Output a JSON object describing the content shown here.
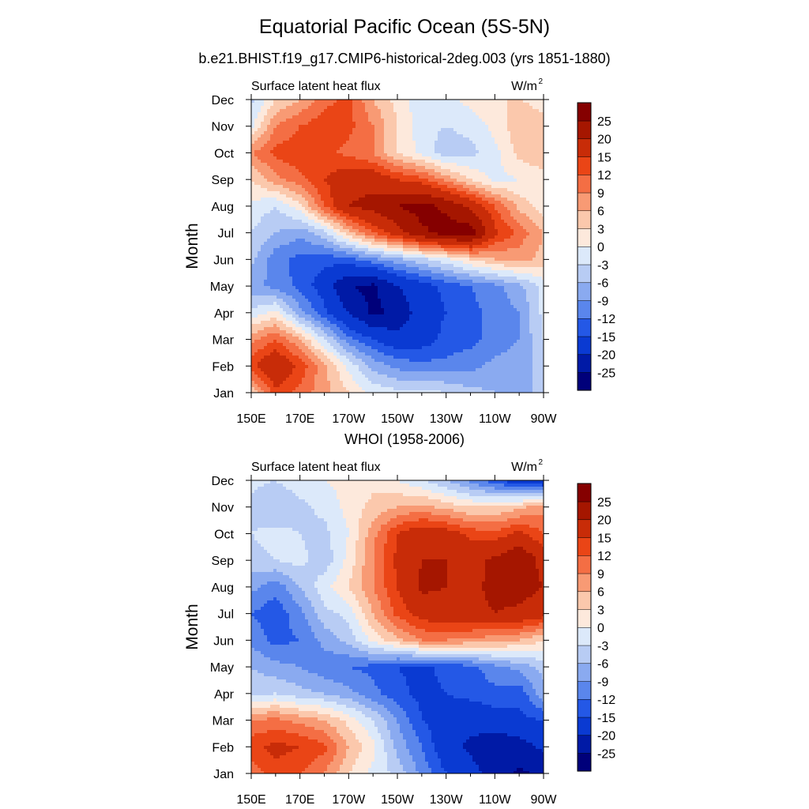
{
  "figure": {
    "title": "Equatorial Pacific Ocean (5S-5N)",
    "subtitle": "b.e21.BHIST.f19_g17.CMIP6-historical-2deg.003 (yrs 1851-1880)",
    "panel2_title": "WHOI (1958-2006)"
  },
  "colors": {
    "levels": [
      -25,
      -20,
      -15,
      -12,
      -9,
      -6,
      -3,
      0,
      3,
      6,
      9,
      12,
      15,
      20,
      25
    ],
    "fills": [
      "#00007a",
      "#001aa6",
      "#0a3ad2",
      "#2458e6",
      "#5a86ec",
      "#8aaaf0",
      "#b8ccf4",
      "#dce9fa",
      "#fde9dc",
      "#fbc8ac",
      "#f89a74",
      "#f46e44",
      "#ea4516",
      "#c82c08",
      "#a51600",
      "#850000"
    ]
  },
  "chart_data": [
    {
      "type": "heatmap",
      "name": "model",
      "left_label": "Surface latent heat flux",
      "right_label": "W/m",
      "right_label_sup": "2",
      "ylabel": "Month",
      "x_tick_labels": [
        "150E",
        "170E",
        "170W",
        "150W",
        "130W",
        "110W",
        "90W"
      ],
      "x": [
        150,
        160,
        170,
        180,
        190,
        200,
        210,
        220,
        230,
        240,
        250,
        260,
        270
      ],
      "y_tick_labels": [
        "Jan",
        "Feb",
        "Mar",
        "Apr",
        "May",
        "Jun",
        "Jul",
        "Aug",
        "Sep",
        "Oct",
        "Nov",
        "Dec"
      ],
      "colorbar_labels": [
        "25",
        "20",
        "15",
        "12",
        "9",
        "6",
        "3",
        "0",
        "-3",
        "-6",
        "-9",
        "-12",
        "-15",
        "-20",
        "-25"
      ],
      "z": [
        [
          3,
          14,
          11,
          7,
          3,
          -1,
          -2,
          -2,
          -3,
          -5,
          -6,
          -7,
          -5
        ],
        [
          14,
          20,
          14,
          7,
          -1,
          -7,
          -10,
          -11,
          -11,
          -10,
          -8,
          -7,
          -5
        ],
        [
          8,
          12,
          6,
          -3,
          -11,
          -15,
          -18,
          -17,
          -14,
          -13,
          -11,
          -9,
          -3
        ],
        [
          -2,
          1,
          -8,
          -14,
          -20,
          -26,
          -24,
          -17,
          -15,
          -13,
          -11,
          -9,
          -2
        ],
        [
          -8,
          -10,
          -13,
          -17,
          -25,
          -26,
          -20,
          -17,
          -14,
          -12,
          -10,
          -7,
          -2
        ],
        [
          -5,
          -11,
          -13,
          -14,
          -13,
          -10,
          -7,
          -4,
          -1,
          3,
          6,
          7,
          5
        ],
        [
          -3,
          -6,
          -8,
          -4,
          5,
          12,
          18,
          24,
          27,
          28,
          16,
          11,
          6
        ],
        [
          -1,
          -3,
          2,
          12,
          20,
          22,
          25,
          27,
          24,
          19,
          12,
          5,
          1
        ],
        [
          3,
          8,
          11,
          15,
          18,
          18,
          15,
          13,
          8,
          3,
          -1,
          0,
          1
        ],
        [
          9,
          13,
          14,
          13,
          11,
          9,
          3,
          -1,
          -5,
          -4,
          -1,
          4,
          6
        ],
        [
          -1,
          9,
          12,
          14,
          13,
          9,
          3,
          -2,
          -3,
          -2,
          1,
          5,
          4
        ],
        [
          -4,
          3,
          6,
          11,
          13,
          6,
          2,
          -2,
          -1,
          1,
          3,
          3,
          2
        ]
      ]
    },
    {
      "type": "heatmap",
      "name": "obs",
      "left_label": "Surface latent heat flux",
      "right_label": "W/m",
      "right_label_sup": "2",
      "ylabel": "Month",
      "x_tick_labels": [
        "150E",
        "170E",
        "170W",
        "150W",
        "130W",
        "110W",
        "90W"
      ],
      "x": [
        150,
        160,
        170,
        180,
        190,
        200,
        210,
        220,
        230,
        240,
        250,
        260,
        270
      ],
      "y_tick_labels": [
        "Jan",
        "Feb",
        "Mar",
        "Apr",
        "May",
        "Jun",
        "Jul",
        "Aug",
        "Sep",
        "Oct",
        "Nov",
        "Dec"
      ],
      "colorbar_labels": [
        "25",
        "20",
        "15",
        "12",
        "9",
        "6",
        "3",
        "0",
        "-3",
        "-6",
        "-9",
        "-12",
        "-15",
        "-20",
        "-25"
      ],
      "z": [
        [
          10,
          14,
          12,
          9,
          3,
          -1,
          -4,
          -10,
          -15,
          -18,
          -22,
          -26,
          -24
        ],
        [
          14,
          16,
          15,
          13,
          6,
          1,
          -7,
          -12,
          -18,
          -21,
          -24,
          -22,
          -19
        ],
        [
          9,
          10,
          8,
          6,
          2,
          -3,
          -9,
          -15,
          -17,
          -18,
          -17,
          -16,
          -15
        ],
        [
          -4,
          -3,
          -5,
          -6,
          -8,
          -11,
          -14,
          -16,
          -15,
          -14,
          -13,
          -14,
          -7
        ],
        [
          -6,
          -8,
          -9,
          -11,
          -12,
          -13,
          -15,
          -16,
          -14,
          -13,
          -10,
          -8,
          -5
        ],
        [
          -10,
          -13,
          -12,
          -8,
          -5,
          1,
          5,
          9,
          9,
          8,
          7,
          6,
          3
        ],
        [
          -12,
          -14,
          -10,
          -4,
          -2,
          6,
          13,
          17,
          18,
          19,
          20,
          19,
          17
        ],
        [
          -8,
          -11,
          -6,
          -1,
          3,
          9,
          15,
          21,
          20,
          19,
          21,
          22,
          20
        ],
        [
          -4,
          -3,
          -2,
          -5,
          1,
          9,
          16,
          20,
          20,
          18,
          21,
          25,
          18
        ],
        [
          -3,
          -2,
          -3,
          -4,
          0,
          8,
          15,
          18,
          17,
          14,
          13,
          16,
          12
        ],
        [
          -4,
          -6,
          -4,
          -2,
          1,
          4,
          6,
          7,
          5,
          3,
          3,
          5,
          8
        ],
        [
          -2,
          -3,
          -1,
          0,
          1,
          2,
          0,
          -3,
          -6,
          -10,
          -14,
          -18,
          -20
        ]
      ]
    }
  ]
}
